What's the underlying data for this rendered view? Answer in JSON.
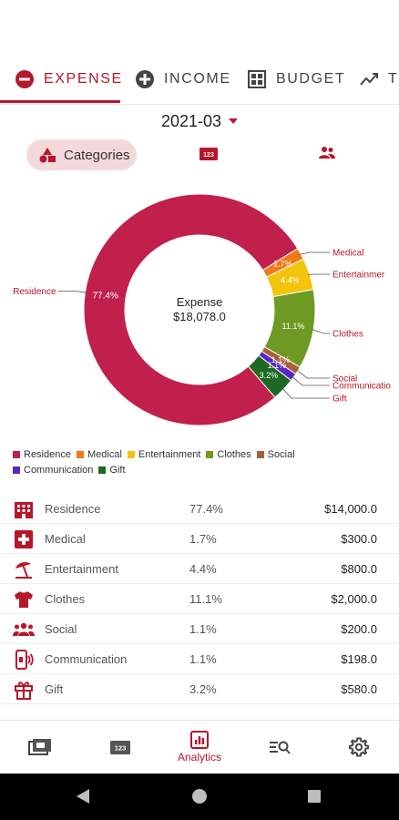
{
  "tabs": [
    {
      "label": "EXPENSE",
      "icon": "minus-circle-icon",
      "active": true
    },
    {
      "label": "INCOME",
      "icon": "plus-circle-icon",
      "active": false
    },
    {
      "label": "BUDGET",
      "icon": "budget-grid-icon",
      "active": false
    },
    {
      "label": "T",
      "icon": "trend-icon",
      "active": false
    }
  ],
  "month": {
    "value": "2021-03"
  },
  "views": {
    "categories_label": "Categories"
  },
  "chart_data": {
    "type": "pie",
    "donut": true,
    "center_title": "Expense",
    "center_value": "$18,078.0",
    "slices": [
      {
        "name": "Residence",
        "value": 14000.0,
        "percent": "77.4%",
        "color": "#c0204b"
      },
      {
        "name": "Medical",
        "value": 300.0,
        "percent": "1.7%",
        "color": "#f07a1a"
      },
      {
        "name": "Entertainment",
        "value": 800.0,
        "percent": "4.4%",
        "color": "#f2c40c",
        "callout": "Entertainmer"
      },
      {
        "name": "Clothes",
        "value": 2000.0,
        "percent": "11.1%",
        "color": "#6e9a23"
      },
      {
        "name": "Social",
        "value": 200.0,
        "percent": "1.1%",
        "color": "#a8603b"
      },
      {
        "name": "Communication",
        "value": 198.0,
        "percent": "1.1%",
        "color": "#5a27c4",
        "callout": "Communicatio"
      },
      {
        "name": "Gift",
        "value": 580.0,
        "percent": "3.2%",
        "color": "#1e6a25"
      }
    ]
  },
  "legend": [
    {
      "label": "Residence",
      "color": "#c0204b"
    },
    {
      "label": "Medical",
      "color": "#f07a1a"
    },
    {
      "label": "Entertainment",
      "color": "#f2c40c"
    },
    {
      "label": "Clothes",
      "color": "#6e9a23"
    },
    {
      "label": "Social",
      "color": "#a8603b"
    },
    {
      "label": "Communication",
      "color": "#5a27c4"
    },
    {
      "label": "Gift",
      "color": "#1e6a25"
    }
  ],
  "rows": [
    {
      "name": "Residence",
      "percent": "77.4%",
      "amount": "$14,000.0",
      "icon": "building-icon"
    },
    {
      "name": "Medical",
      "percent": "1.7%",
      "amount": "$300.0",
      "icon": "medical-cross-icon"
    },
    {
      "name": "Entertainment",
      "percent": "4.4%",
      "amount": "$800.0",
      "icon": "beach-umbrella-icon"
    },
    {
      "name": "Clothes",
      "percent": "11.1%",
      "amount": "$2,000.0",
      "icon": "shirt-icon"
    },
    {
      "name": "Social",
      "percent": "1.1%",
      "amount": "$200.0",
      "icon": "people-icon"
    },
    {
      "name": "Communication",
      "percent": "1.1%",
      "amount": "$198.0",
      "icon": "phone-icon"
    },
    {
      "name": "Gift",
      "percent": "3.2%",
      "amount": "$580.0",
      "icon": "gift-icon"
    }
  ],
  "bottom_nav": [
    {
      "label": "",
      "icon": "wallet-icon"
    },
    {
      "label": "",
      "icon": "numeric-123-icon"
    },
    {
      "label": "Analytics",
      "icon": "analytics-icon",
      "active": true
    },
    {
      "label": "",
      "icon": "search-list-icon"
    },
    {
      "label": "",
      "icon": "gear-icon"
    }
  ],
  "colors": {
    "accent": "#b5172b",
    "accent_soft": "#f4d9dc"
  }
}
